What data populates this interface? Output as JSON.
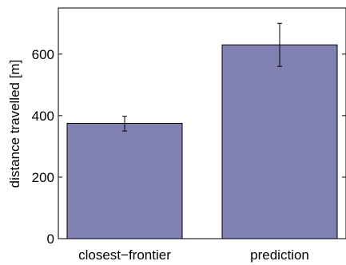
{
  "chart_data": {
    "type": "bar",
    "categories": [
      "closest−frontier",
      "prediction"
    ],
    "values": [
      375,
      630
    ],
    "error_bars": [
      {
        "low": 350,
        "high": 398
      },
      {
        "low": 560,
        "high": 700
      }
    ],
    "ylabel": "distance travelled [m]",
    "ylim": [
      0,
      750
    ],
    "yticks": [
      0,
      200,
      400,
      600
    ],
    "grid": false,
    "bar_color": "#8080b3",
    "bar_edge_color": "#000000"
  }
}
